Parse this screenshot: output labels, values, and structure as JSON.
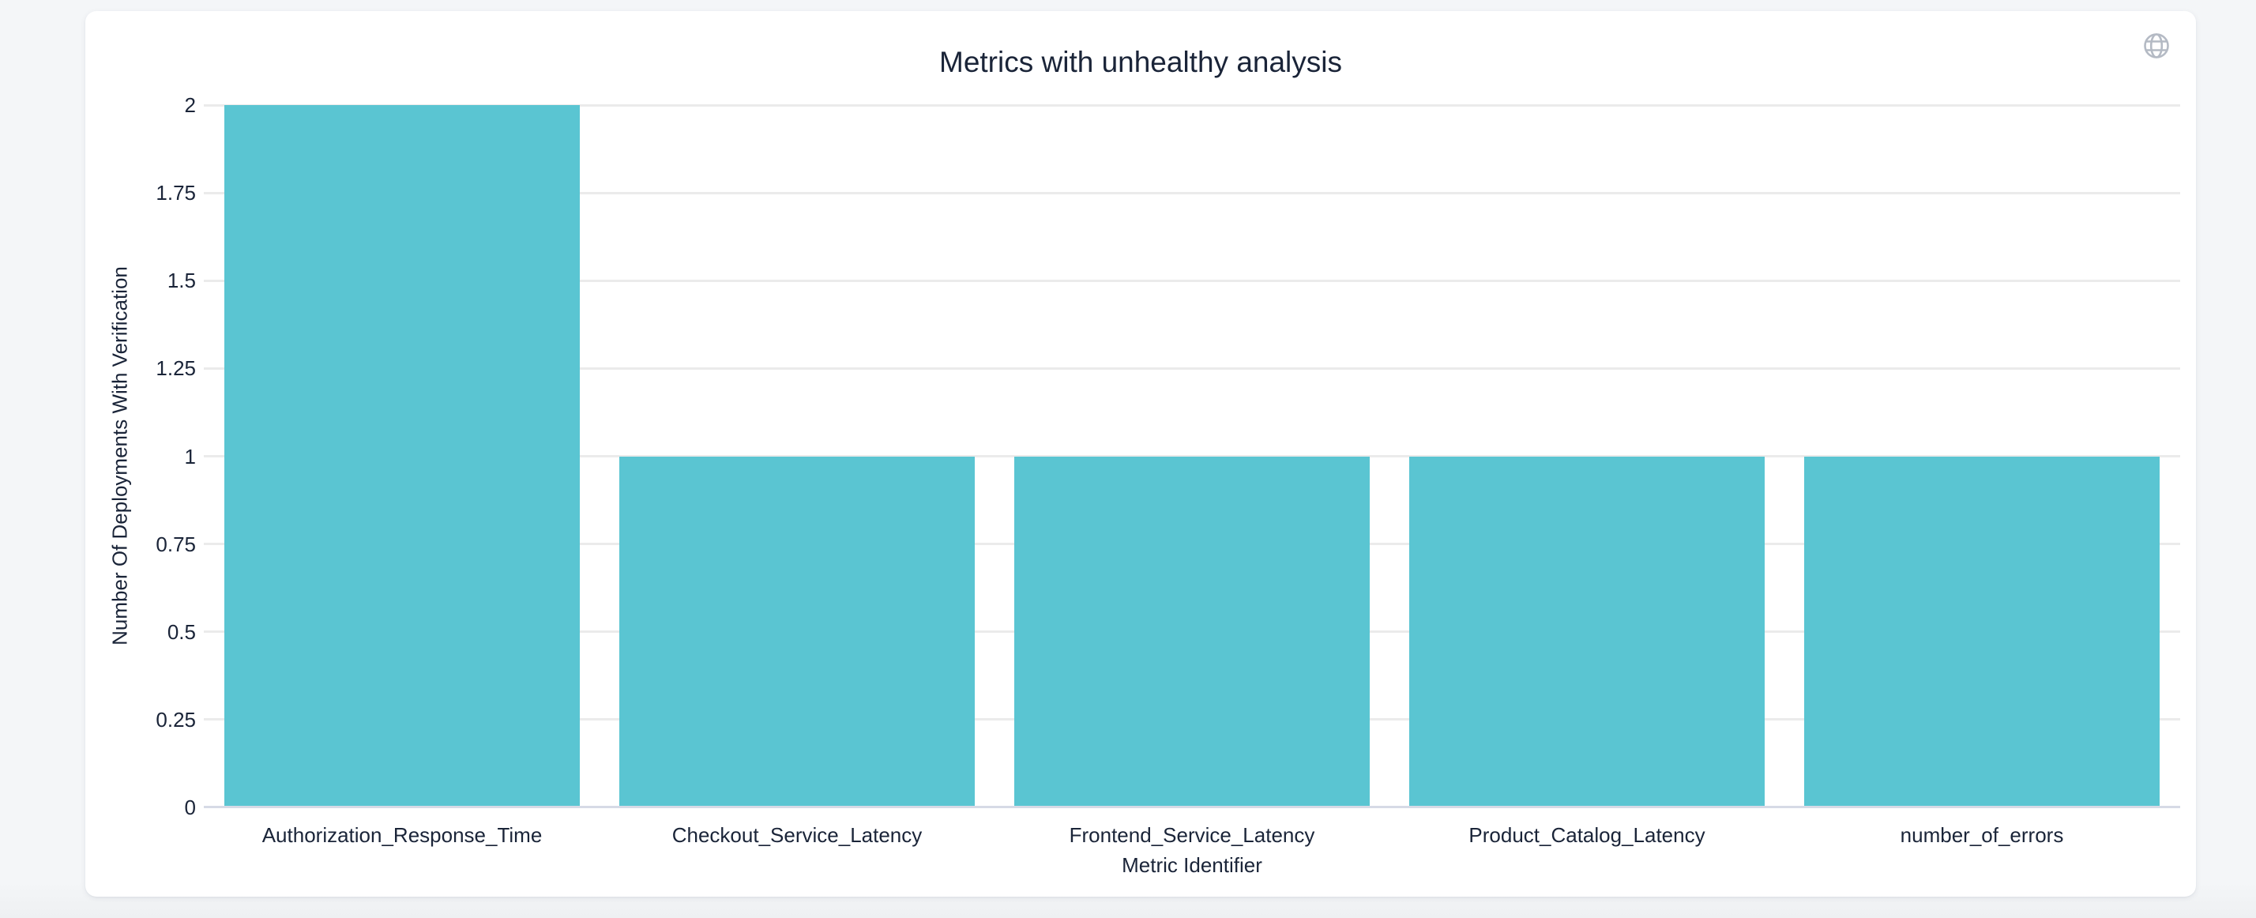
{
  "colors": {
    "page_background": "#f4f6f8",
    "card_background": "#ffffff",
    "bar": "#5ac5d2",
    "gridline": "#ebebeb",
    "zero_line": "#d6dae6",
    "text": "#1a2438",
    "globe_icon": "#b4bac4"
  },
  "icons": {
    "top_right": "globe-icon"
  },
  "chart_data": {
    "type": "bar",
    "title": "Metrics with unhealthy analysis",
    "categories": [
      "Authorization_Response_Time",
      "Checkout_Service_Latency",
      "Frontend_Service_Latency",
      "Product_Catalog_Latency",
      "number_of_errors"
    ],
    "values": [
      2,
      1,
      1,
      1,
      1
    ],
    "xlabel": "Metric Identifier",
    "ylabel": "Number Of Deployments With Verification",
    "ylim": [
      0,
      2
    ],
    "yticks": [
      0,
      0.25,
      0.5,
      0.75,
      1,
      1.25,
      1.5,
      1.75,
      2
    ],
    "grid": true,
    "legend_position": "none"
  }
}
